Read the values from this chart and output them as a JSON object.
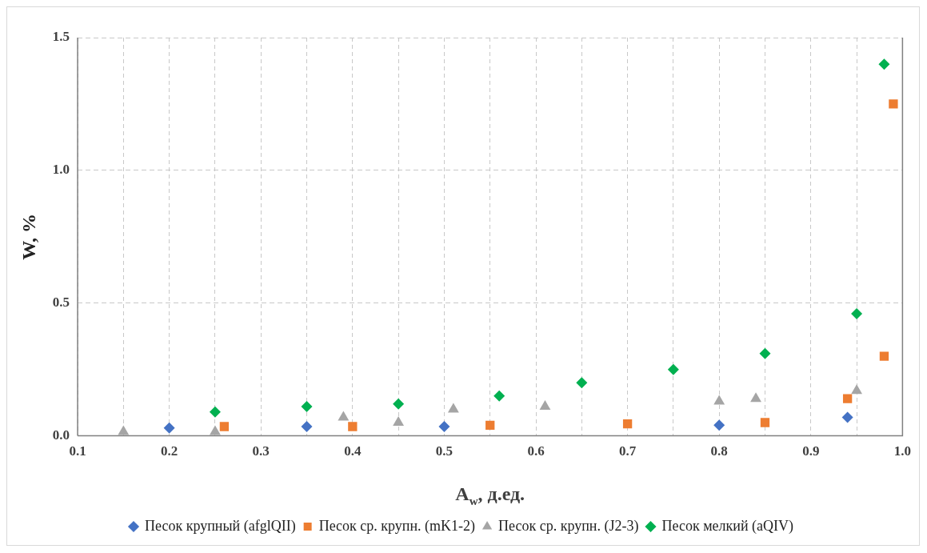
{
  "chart_data": {
    "type": "scatter",
    "xlabel": "A$_{w}$, д.ед.",
    "ylabel": "W, %",
    "xlim": [
      0.1,
      1.0
    ],
    "xticks": [
      0.1,
      {
        "value": 0.15,
        "label": null
      },
      0.2,
      {
        "value": 0.25,
        "label": null
      },
      0.3,
      {
        "value": 0.35,
        "label": null
      },
      0.4,
      {
        "value": 0.45,
        "label": null
      },
      0.5,
      {
        "value": 0.55,
        "label": null
      },
      0.6,
      {
        "value": 0.65,
        "label": null
      },
      0.7,
      {
        "value": 0.75,
        "label": null
      },
      0.8,
      {
        "value": 0.85,
        "label": null
      },
      0.9,
      {
        "value": 0.95,
        "label": null
      },
      {
        "value": 1.0,
        "label": "1.0"
      }
    ],
    "ylim": [
      0,
      1.5
    ],
    "yticks": [
      {
        "value": 0,
        "label": "0.0"
      },
      0.5,
      {
        "value": 1,
        "label": "1.0"
      },
      1.5
    ],
    "grid": true,
    "legend": "bottom",
    "series": [
      {
        "name": "Песок крупный (afglQII)",
        "color": "#4472c4",
        "marker": "diamond",
        "x": [
          0.2,
          0.35,
          0.5,
          0.8,
          0.94
        ],
        "values": [
          0.03,
          0.035,
          0.035,
          0.04,
          0.07
        ]
      },
      {
        "name": "Песок ср. крупн. (mK1-2)",
        "color": "#ed7d31",
        "marker": "square",
        "x": [
          0.26,
          0.4,
          0.55,
          0.7,
          0.85,
          0.94,
          0.98,
          0.99
        ],
        "values": [
          0.035,
          0.035,
          0.04,
          0.045,
          0.05,
          0.14,
          0.3,
          1.25
        ]
      },
      {
        "name": "Песок ср. крупн. (J2-3)",
        "color": "#a5a5a5",
        "marker": "triangle",
        "x": [
          0.15,
          0.25,
          0.39,
          0.45,
          0.51,
          0.61,
          0.8,
          0.84,
          0.95
        ],
        "values": [
          0.015,
          0.015,
          0.07,
          0.05,
          0.1,
          0.11,
          0.13,
          0.14,
          0.17
        ]
      },
      {
        "name": "Песок мелкий (aQIV)",
        "color": "#00b050",
        "marker": "diamond",
        "x": [
          0.25,
          0.35,
          0.45,
          0.56,
          0.65,
          0.75,
          0.85,
          0.95,
          0.98
        ],
        "values": [
          0.09,
          0.11,
          0.12,
          0.15,
          0.2,
          0.25,
          0.31,
          0.46,
          1.4
        ]
      }
    ]
  }
}
